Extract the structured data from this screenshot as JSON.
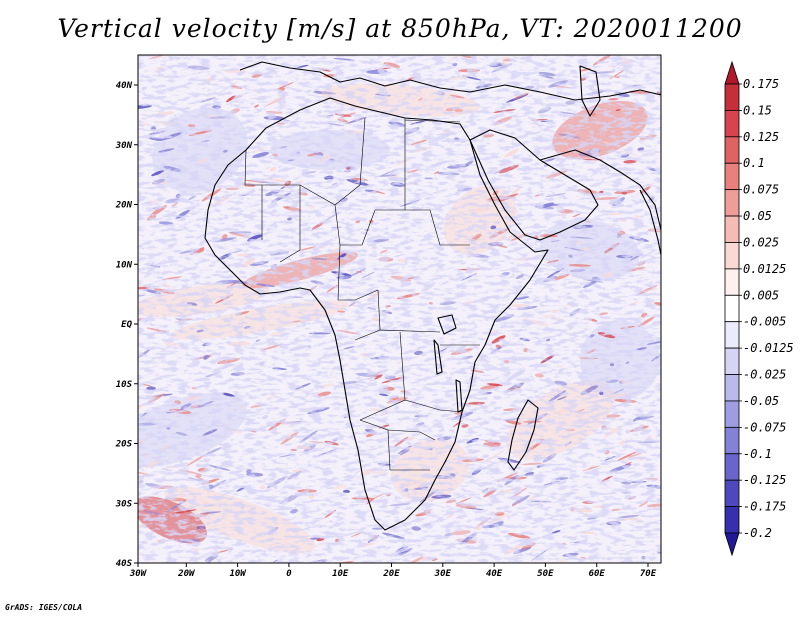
{
  "title": "Vertical velocity [m/s] at 850hPa, VT: 2020011200",
  "credit": "GrADS: IGES/COLA",
  "axes": {
    "x_ticks": [
      "30W",
      "20W",
      "10W",
      "0",
      "10E",
      "20E",
      "30E",
      "40E",
      "50E",
      "60E",
      "70E"
    ],
    "y_ticks": [
      "40N",
      "30N",
      "20N",
      "10N",
      "EQ",
      "10S",
      "20S",
      "30S",
      "40S"
    ]
  },
  "colorbar": {
    "labels": [
      "0.175",
      "0.15",
      "0.125",
      "0.1",
      "0.075",
      "0.05",
      "0.025",
      "0.0125",
      "0.005",
      "-0.005",
      "-0.0125",
      "-0.025",
      "-0.05",
      "-0.075",
      "-0.1",
      "-0.125",
      "-0.175",
      "-0.2"
    ],
    "colors": [
      "#b2182b",
      "#c42f39",
      "#d6454f",
      "#e06364",
      "#e8807c",
      "#ef9d98",
      "#f5bcb6",
      "#fad8d3",
      "#fdf0ee",
      "#ffffff",
      "#ecebfb",
      "#d6d4f4",
      "#bcb9ec",
      "#a09ce2",
      "#8581d7",
      "#6b65cb",
      "#4f48bd",
      "#3630ac",
      "#22189a"
    ]
  },
  "map": {
    "region": "Africa",
    "lon_range": [
      -30,
      75
    ],
    "lat_range": [
      -40,
      45
    ],
    "field_colors": {
      "pos": "#e8807c",
      "pos_strong": "#d6454f",
      "neg": "#8581d7",
      "neg_strong": "#4f48bd",
      "pale_pos": "#fad8d3",
      "pale_neg": "#d6d4f4"
    }
  }
}
